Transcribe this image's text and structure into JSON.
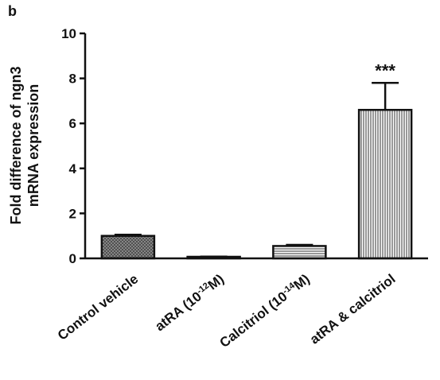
{
  "panel_label": "b",
  "chart_data": {
    "type": "bar",
    "title": "",
    "ylabel_lines": [
      "Fold difference of ngn3",
      "mRNA expression"
    ],
    "xlabel": "",
    "ylim": [
      0,
      10
    ],
    "yticks": [
      0,
      2,
      4,
      6,
      8,
      10
    ],
    "ytick_labels": [
      "0",
      "2",
      "4",
      "6",
      "8",
      "10"
    ],
    "categories": [
      {
        "label": "Control vehicle",
        "parts": [
          {
            "t": "Control vehicle"
          }
        ]
      },
      {
        "label": "atRA (10-12M)",
        "parts": [
          {
            "t": "atRA (10"
          },
          {
            "t": "-12",
            "sup": true
          },
          {
            "t": "M)"
          }
        ]
      },
      {
        "label": "Calcitriol (10-14M)",
        "parts": [
          {
            "t": "Calcitriol (10"
          },
          {
            "t": "-14",
            "sup": true
          },
          {
            "t": "M)"
          }
        ]
      },
      {
        "label": "atRA & calcitriol",
        "parts": [
          {
            "t": "atRA & calcitriol"
          }
        ]
      }
    ],
    "values": [
      1.0,
      0.05,
      0.55,
      6.6
    ],
    "errors": [
      0.05,
      0.03,
      0.05,
      1.2
    ],
    "patterns": [
      "crosshatch",
      "dots",
      "horizontal",
      "vertical"
    ],
    "significance": [
      "",
      "",
      "",
      "***"
    ]
  }
}
